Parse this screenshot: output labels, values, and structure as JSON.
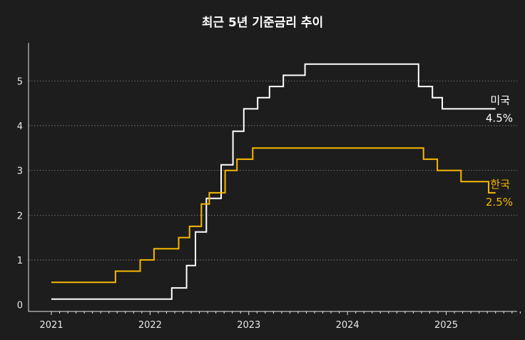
{
  "chart_data": {
    "type": "line",
    "title": "최근 5년 기준금리 추이",
    "xlabel": "",
    "ylabel": "",
    "xlim": [
      2021.0,
      2025.95
    ],
    "ylim": [
      -0.15,
      5.85
    ],
    "x_ticks": [
      2021,
      2022,
      2023,
      2024,
      2025
    ],
    "y_ticks": [
      0,
      1,
      2,
      3,
      4,
      5
    ],
    "grid": "horizontal-dotted",
    "legend": "direct labels at line ends",
    "series": [
      {
        "name": "미국",
        "end_label": "4.5%",
        "color": "#ffffff",
        "x": [
          2021.0,
          2022.22,
          2022.22,
          2022.37,
          2022.37,
          2022.46,
          2022.46,
          2022.57,
          2022.57,
          2022.72,
          2022.72,
          2022.84,
          2022.84,
          2022.95,
          2022.95,
          2023.09,
          2023.09,
          2023.21,
          2023.21,
          2023.35,
          2023.35,
          2023.57,
          2023.57,
          2024.72,
          2024.72,
          2024.86,
          2024.86,
          2024.96,
          2024.96,
          2025.5
        ],
        "y": [
          0.125,
          0.125,
          0.375,
          0.375,
          0.875,
          0.875,
          1.625,
          1.625,
          2.375,
          2.375,
          3.125,
          3.125,
          3.875,
          3.875,
          4.375,
          4.375,
          4.625,
          4.625,
          4.875,
          4.875,
          5.125,
          5.125,
          5.375,
          5.375,
          4.875,
          4.875,
          4.625,
          4.625,
          4.375,
          4.375
        ]
      },
      {
        "name": "한국",
        "end_label": "2.5%",
        "color": "#f5b700",
        "x": [
          2021.0,
          2021.65,
          2021.65,
          2021.9,
          2021.9,
          2022.04,
          2022.04,
          2022.29,
          2022.29,
          2022.4,
          2022.4,
          2022.52,
          2022.52,
          2022.6,
          2022.6,
          2022.76,
          2022.76,
          2022.88,
          2022.88,
          2023.04,
          2023.04,
          2024.77,
          2024.77,
          2024.91,
          2024.91,
          2025.15,
          2025.15,
          2025.43,
          2025.43,
          2025.5
        ],
        "y": [
          0.5,
          0.5,
          0.75,
          0.75,
          1.0,
          1.0,
          1.25,
          1.25,
          1.5,
          1.5,
          1.75,
          1.75,
          2.25,
          2.25,
          2.5,
          2.5,
          3.0,
          3.0,
          3.25,
          3.25,
          3.5,
          3.5,
          3.25,
          3.25,
          3.0,
          3.0,
          2.75,
          2.75,
          2.5,
          2.5
        ]
      }
    ]
  }
}
